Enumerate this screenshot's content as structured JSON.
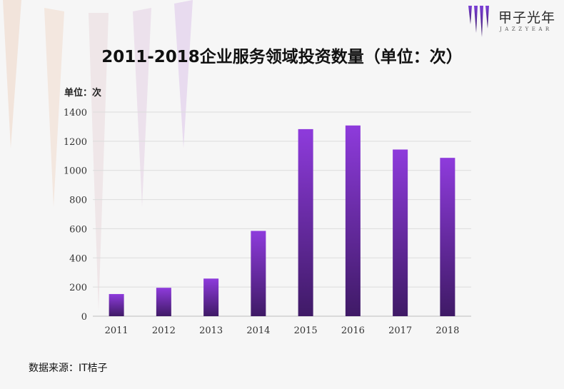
{
  "brand": {
    "name": "甲子光年",
    "sub": "JAZZYEAR"
  },
  "chart_data": {
    "type": "bar",
    "title": "2011-2018企业服务领域投资数量（单位：次）",
    "unit_label": "单位：次",
    "categories": [
      "2011",
      "2012",
      "2013",
      "2014",
      "2015",
      "2016",
      "2017",
      "2018"
    ],
    "values": [
      152,
      195,
      258,
      585,
      1283,
      1308,
      1143,
      1086
    ],
    "ylim": [
      0,
      1400
    ],
    "yticks": [
      0,
      200,
      400,
      600,
      800,
      1000,
      1200,
      1400
    ],
    "grid": true,
    "legend": "none",
    "bar_colors": {
      "top": "#8e3bdc",
      "bottom": "#3f1a66"
    },
    "source": "数据来源：IT桔子"
  }
}
